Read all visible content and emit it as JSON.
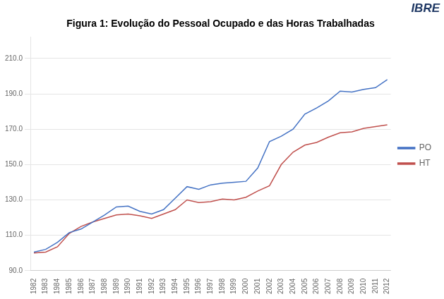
{
  "chart_data": {
    "type": "line",
    "title": "Figura 1: Evolução do Pessoal Ocupado e das Horas Trabalhadas",
    "x": [
      1982,
      1983,
      1984,
      1985,
      1986,
      1987,
      1988,
      1989,
      1990,
      1991,
      1992,
      1993,
      1994,
      1995,
      1996,
      1997,
      1998,
      1999,
      2000,
      2001,
      2002,
      2003,
      2004,
      2005,
      2006,
      2007,
      2008,
      2009,
      2010,
      2011,
      2012
    ],
    "series": [
      {
        "name": "PO",
        "color": "#4472C4",
        "values": [
          100.5,
          102.0,
          106.0,
          111.5,
          113.5,
          117.5,
          121.5,
          126.0,
          126.5,
          123.5,
          122.0,
          124.5,
          131.0,
          137.5,
          136.0,
          138.5,
          139.5,
          140.0,
          140.5,
          148.0,
          163.0,
          166.0,
          170.0,
          178.5,
          182.0,
          186.0,
          191.5,
          191.0,
          192.5,
          193.5,
          198.0
        ]
      },
      {
        "name": "HT",
        "color": "#C0504D",
        "values": [
          100.0,
          100.5,
          103.5,
          111.0,
          115.0,
          117.5,
          119.5,
          121.5,
          122.0,
          121.0,
          119.5,
          122.0,
          124.5,
          130.0,
          128.5,
          129.0,
          130.5,
          130.0,
          131.5,
          135.0,
          138.0,
          150.0,
          157.0,
          161.0,
          162.5,
          165.5,
          168.0,
          168.5,
          170.5,
          171.5,
          172.5
        ]
      }
    ],
    "xlim": [
      1981.7,
      2012.3
    ],
    "xticks": [
      1982,
      1983,
      1984,
      1985,
      1986,
      1987,
      1988,
      1989,
      1990,
      1991,
      1992,
      1993,
      1994,
      1995,
      1996,
      1997,
      1998,
      1999,
      2000,
      2001,
      2002,
      2003,
      2004,
      2005,
      2006,
      2007,
      2008,
      2009,
      2010,
      2011,
      2012
    ],
    "ylim": [
      90.0,
      222.0
    ],
    "yticks": [
      {
        "value": 90,
        "label": "90.0"
      },
      {
        "value": 110,
        "label": "110.0"
      },
      {
        "value": 130,
        "label": "130.0"
      },
      {
        "value": 150,
        "label": "150.0"
      },
      {
        "value": 170,
        "label": "170.0"
      },
      {
        "value": 190,
        "label": "190.0"
      },
      {
        "value": 210,
        "label": "210.0"
      }
    ],
    "grid": "y",
    "legend": "right",
    "annotations": [
      {
        "text": "IBRE",
        "color": "#1F3864"
      }
    ]
  }
}
